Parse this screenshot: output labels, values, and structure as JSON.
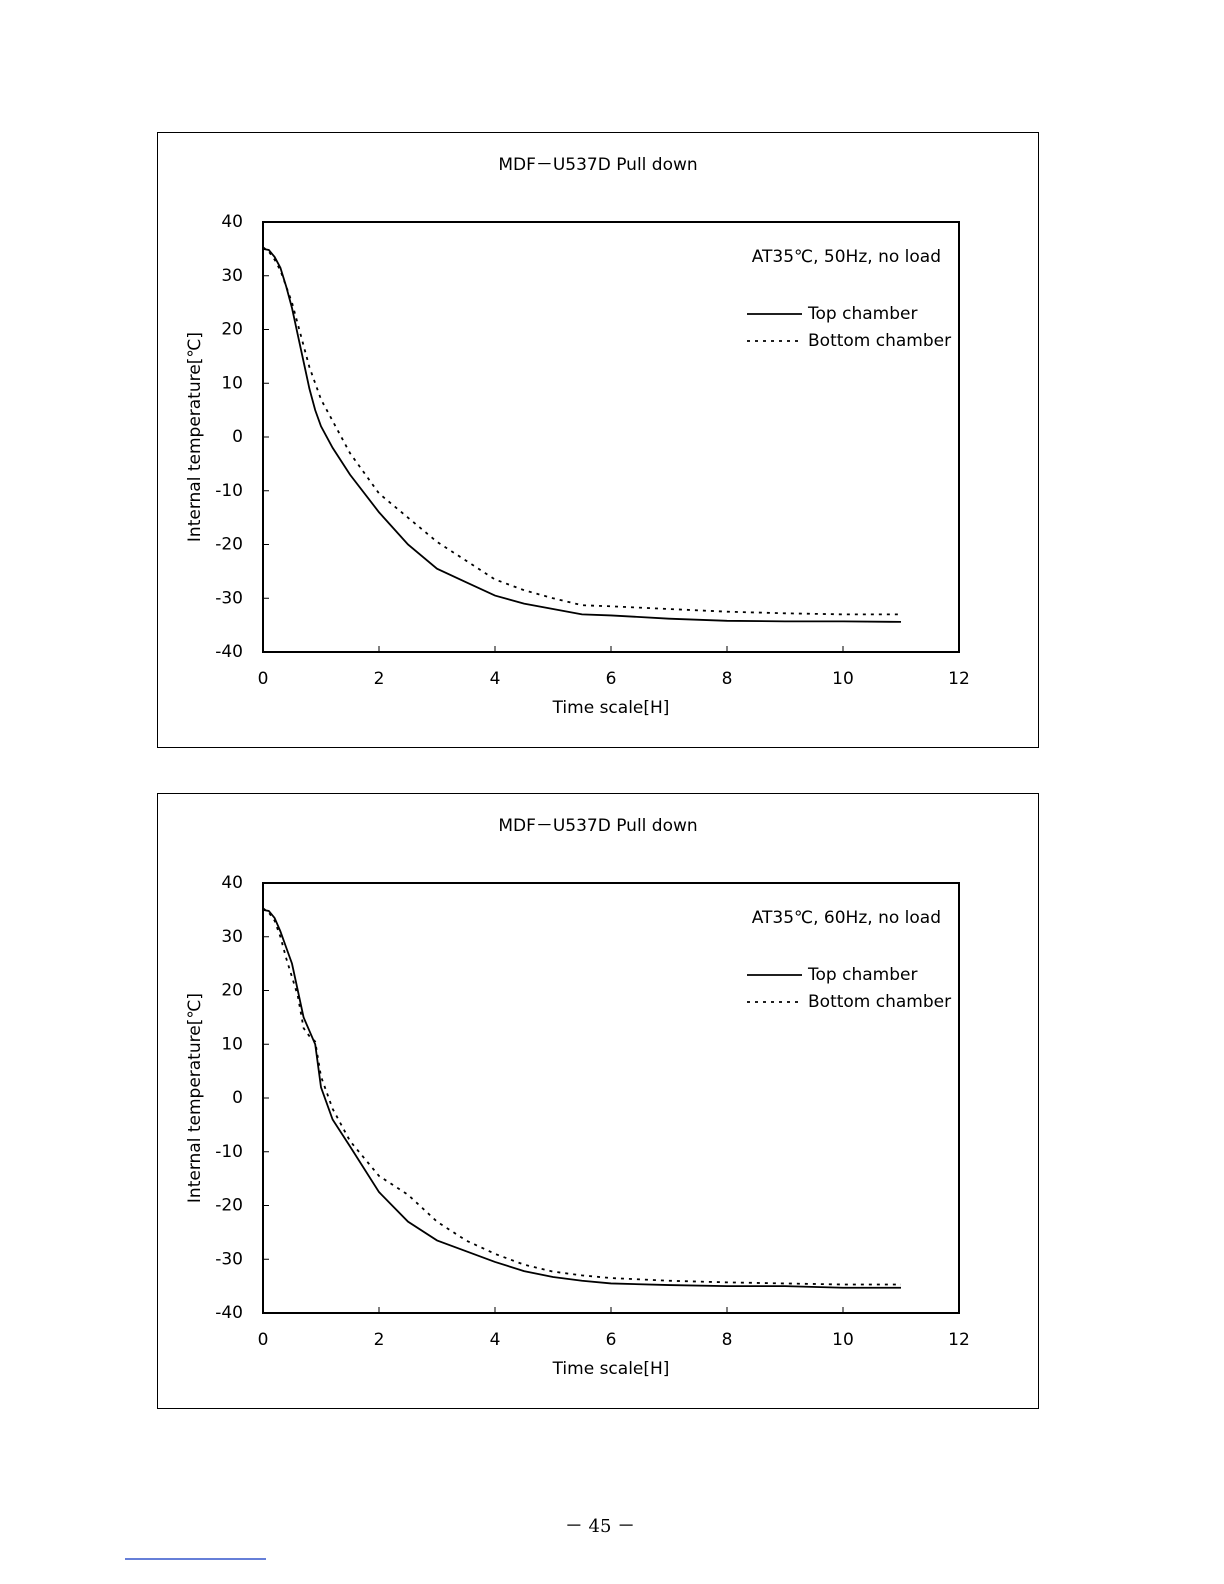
{
  "chart_data": [
    {
      "type": "line",
      "title": "MDF－U537D Pull down",
      "annotation": "AT35℃, 50Hz, no load",
      "xlabel": "Time scale[H]",
      "ylabel": "Internal temperature[℃]",
      "x": [
        0,
        0.1,
        0.2,
        0.3,
        0.4,
        0.5,
        0.6,
        0.7,
        0.8,
        0.9,
        1,
        1.2,
        1.5,
        2,
        2.5,
        3,
        3.5,
        4,
        4.5,
        5,
        5.5,
        6,
        7,
        8,
        9,
        10,
        11
      ],
      "series": [
        {
          "name": "Top chamber",
          "color": "#000000",
          "style": "solid",
          "values": [
            35,
            34.8,
            33.5,
            31.5,
            28,
            24,
            19,
            14,
            9,
            5,
            2,
            -2,
            -7,
            -14,
            -20,
            -24.5,
            -27,
            -29.5,
            -31,
            -32,
            -33,
            -33.2,
            -33.8,
            -34.2,
            -34.3,
            -34.3,
            -34.4
          ]
        },
        {
          "name": "Bottom chamber",
          "color": "#000000",
          "style": "dotted",
          "values": [
            35.3,
            34.5,
            33,
            31,
            28,
            25,
            21,
            17,
            13,
            10,
            7,
            3,
            -3,
            -10.5,
            -15,
            -19.5,
            -23,
            -26.5,
            -28.5,
            -30,
            -31.3,
            -31.5,
            -32,
            -32.5,
            -32.8,
            -33,
            -33
          ]
        }
      ],
      "xlim": [
        0,
        12
      ],
      "xticks": [
        0,
        2,
        4,
        6,
        8,
        10,
        12
      ],
      "ylim": [
        -40,
        40
      ],
      "yticks": [
        40,
        30,
        20,
        10,
        0,
        -10,
        -20,
        -30,
        -40
      ],
      "legend": "upper-right",
      "grid": false
    },
    {
      "type": "line",
      "title": "MDF－U537D Pull down",
      "annotation": "AT35℃, 60Hz, no load",
      "xlabel": "Time scale[H]",
      "ylabel": "Internal temperature[℃]",
      "x": [
        0,
        0.1,
        0.2,
        0.3,
        0.4,
        0.5,
        0.6,
        0.7,
        0.8,
        0.9,
        1,
        1.2,
        1.5,
        2,
        2.5,
        3,
        3.5,
        4,
        4.5,
        5,
        5.5,
        6,
        7,
        8,
        9,
        10,
        11
      ],
      "series": [
        {
          "name": "Top chamber",
          "color": "#000000",
          "style": "solid",
          "values": [
            35,
            34.8,
            33.5,
            31,
            28,
            25,
            20,
            15,
            12.5,
            10,
            2,
            -4,
            -9,
            -17.5,
            -23,
            -26.5,
            -28.5,
            -30.5,
            -32.2,
            -33.3,
            -34,
            -34.5,
            -34.8,
            -35,
            -35,
            -35.3,
            -35.3
          ]
        },
        {
          "name": "Bottom chamber",
          "color": "#000000",
          "style": "dotted",
          "values": [
            35.3,
            34.5,
            33,
            30,
            26,
            22.5,
            19,
            13,
            11.5,
            10.5,
            4,
            -2,
            -8,
            -14.5,
            -18,
            -23,
            -26.5,
            -29,
            -31,
            -32.3,
            -33,
            -33.5,
            -34,
            -34.3,
            -34.5,
            -34.7,
            -34.7
          ]
        }
      ],
      "xlim": [
        0,
        12
      ],
      "xticks": [
        0,
        2,
        4,
        6,
        8,
        10,
        12
      ],
      "ylim": [
        -40,
        40
      ],
      "yticks": [
        40,
        30,
        20,
        10,
        0,
        -10,
        -20,
        -30,
        -40
      ],
      "legend": "upper-right",
      "grid": false
    }
  ],
  "footer": "－ 45 －"
}
